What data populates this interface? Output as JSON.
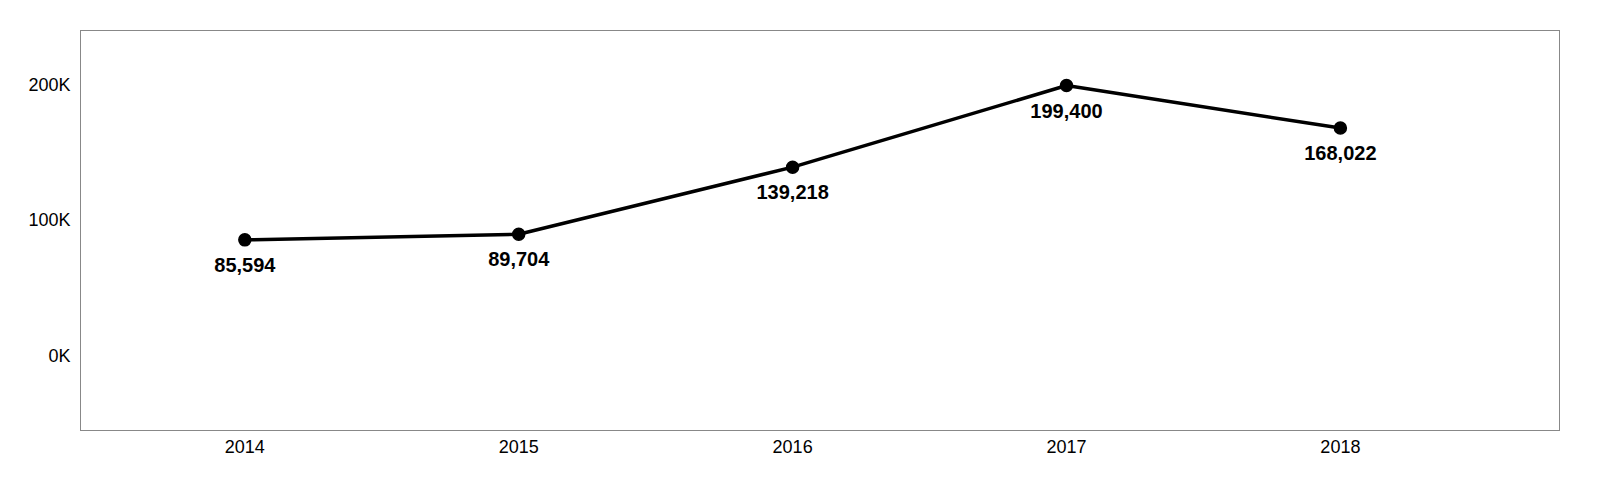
{
  "chart_data": {
    "type": "line",
    "x": [
      2014,
      2015,
      2016,
      2017,
      2018
    ],
    "values": [
      85594,
      89704,
      139218,
      199400,
      168022
    ],
    "value_labels": [
      "85,594",
      "89,704",
      "139,218",
      "199,400",
      "168,022"
    ],
    "data_labels": true,
    "color": "#000000",
    "marker": "circle",
    "xlim": [
      2013.4,
      2018.8
    ],
    "xticks": [
      2014,
      2015,
      2016,
      2017,
      2018
    ],
    "ylim": [
      -55000,
      240000
    ],
    "yticks": [
      {
        "value": 0,
        "label": "0K"
      },
      {
        "value": 100000,
        "label": "100K"
      },
      {
        "value": 200000,
        "label": "200K"
      }
    ],
    "grid": false
  }
}
